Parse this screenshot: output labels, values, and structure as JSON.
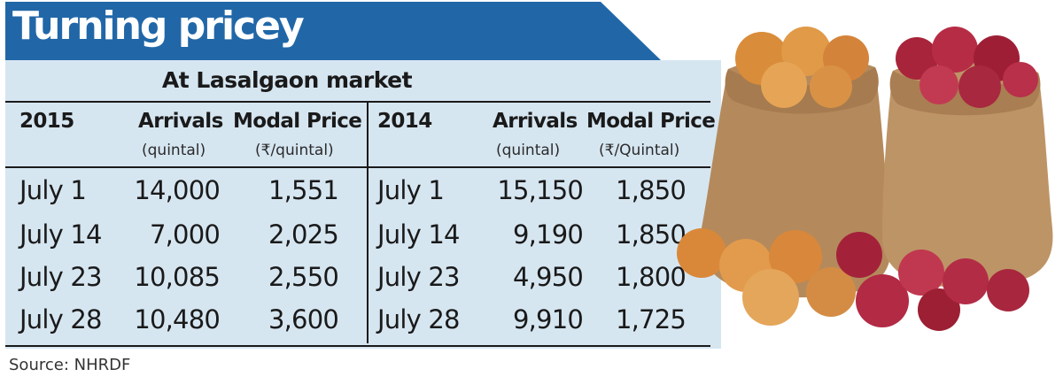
{
  "title": "Turning pricey",
  "subtitle": "At Lasalgaon market",
  "source": "Source: NHRDF",
  "colors": {
    "title_bar": "#2167a8",
    "table_bg": "#d6e6f1",
    "text": "#1a1a1a"
  },
  "icons": {
    "photo": "onion-sacks-image"
  },
  "chart_data": {
    "type": "table",
    "title": "Turning pricey",
    "subtitle": "At Lasalgaon market",
    "headers_2015": {
      "year": "2015",
      "arrivals": "Arrivals",
      "arrivals_unit": "(quintal)",
      "price": "Modal Price",
      "price_unit": "(₹/quintal)"
    },
    "headers_2014": {
      "year": "2014",
      "arrivals": "Arrivals",
      "arrivals_unit": "(quintal)",
      "price": "Modal Price",
      "price_unit": "(₹/Quintal)"
    },
    "rows_2015": [
      {
        "date": "July 1",
        "arrivals": "14,000",
        "price": "1,551"
      },
      {
        "date": "July 14",
        "arrivals": "7,000",
        "price": "2,025"
      },
      {
        "date": "July 23",
        "arrivals": "10,085",
        "price": "2,550"
      },
      {
        "date": "July 28",
        "arrivals": "10,480",
        "price": "3,600"
      }
    ],
    "rows_2014": [
      {
        "date": "July 1",
        "arrivals": "15,150",
        "price": "1,850"
      },
      {
        "date": "July 14",
        "arrivals": "9,190",
        "price": "1,850"
      },
      {
        "date": "July 23",
        "arrivals": "4,950",
        "price": "1,800"
      },
      {
        "date": "July 28",
        "arrivals": "9,910",
        "price": "1,725"
      }
    ]
  }
}
